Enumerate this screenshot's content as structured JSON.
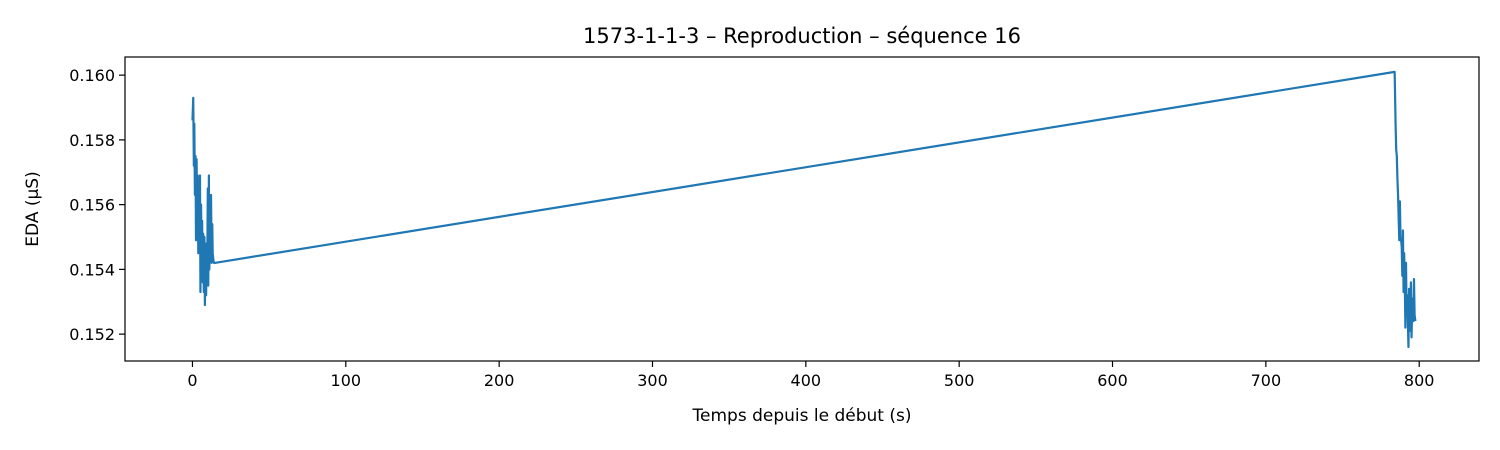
{
  "chart_data": {
    "type": "line",
    "title": "1573-1-1-3 – Reproduction – séquence 16",
    "xlabel": "Temps depuis le début (s)",
    "ylabel": "EDA (µS)",
    "xlim": [
      -44,
      839
    ],
    "ylim": [
      0.15117,
      0.16056
    ],
    "xticks": [
      0,
      100,
      200,
      300,
      400,
      500,
      600,
      700,
      800
    ],
    "xtick_labels": [
      "0",
      "100",
      "200",
      "300",
      "400",
      "500",
      "600",
      "700",
      "800"
    ],
    "yticks": [
      0.152,
      0.154,
      0.156,
      0.158,
      0.16
    ],
    "ytick_labels": [
      "0.152",
      "0.154",
      "0.156",
      "0.158",
      "0.160"
    ],
    "grid": false,
    "line_color": "#1f77b4",
    "series": [
      {
        "x": [
          0,
          0.5,
          0.9,
          1.2,
          1.6,
          2.0,
          2.3,
          2.7,
          3.0,
          3.4,
          3.8,
          4.1,
          4.5,
          4.9,
          5.2,
          5.6,
          6.0,
          6.3,
          6.7,
          7.0,
          7.4,
          7.8,
          8.1,
          8.5,
          8.9,
          9.2,
          9.6,
          10.0,
          10.3,
          10.7,
          11.0,
          11.4,
          11.8,
          12.1,
          12.5,
          12.9,
          13.2,
          13.6,
          14.0,
          14.5,
          784,
          784.6,
          785.0,
          785.4,
          785.8,
          786.2,
          786.6,
          787.0,
          787.4,
          787.8,
          788.2,
          788.6,
          789.0,
          789.4,
          789.8,
          790.2,
          790.6,
          791.0,
          791.4,
          791.8,
          792.2,
          792.6,
          793.0,
          793.4,
          793.8,
          794.2,
          794.6,
          795.0,
          795.4,
          795.8,
          796.2,
          796.6,
          797.0,
          797.5
        ],
        "y": [
          0.1586,
          0.1593,
          0.1572,
          0.1585,
          0.1563,
          0.1575,
          0.1549,
          0.1574,
          0.155,
          0.1569,
          0.1545,
          0.1566,
          0.1553,
          0.1569,
          0.1533,
          0.156,
          0.1545,
          0.1555,
          0.1536,
          0.1551,
          0.1533,
          0.155,
          0.1529,
          0.1548,
          0.1532,
          0.1545,
          0.1537,
          0.1565,
          0.1535,
          0.1569,
          0.154,
          0.1558,
          0.1544,
          0.1563,
          0.1542,
          0.1554,
          0.1545,
          0.1543,
          0.1542,
          0.1542,
          0.1601,
          0.1585,
          0.1577,
          0.1575,
          0.1568,
          0.1563,
          0.1556,
          0.1549,
          0.1561,
          0.155,
          0.1549,
          0.1547,
          0.1538,
          0.1552,
          0.1533,
          0.1545,
          0.1536,
          0.1522,
          0.1542,
          0.1526,
          0.1532,
          0.1524,
          0.1516,
          0.1534,
          0.1528,
          0.1521,
          0.1536,
          0.1519,
          0.1528,
          0.1531,
          0.1524,
          0.1537,
          0.1526,
          0.1524
        ]
      }
    ]
  }
}
